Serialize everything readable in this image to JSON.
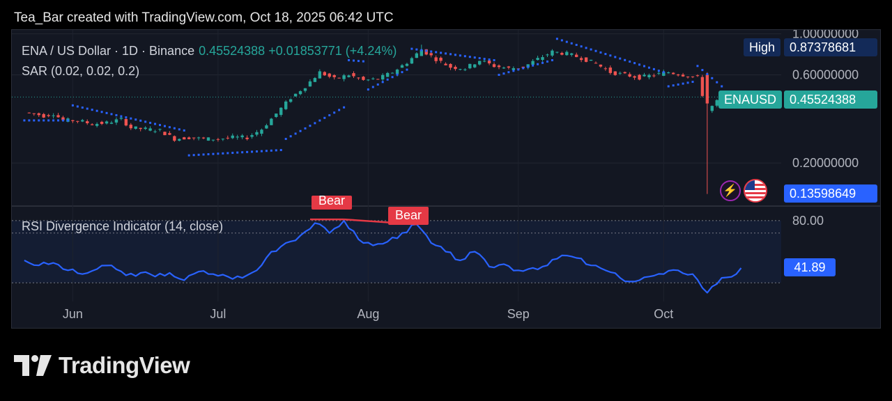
{
  "header": {
    "credit": "Tea_Bar created with TradingView.com, Oct 18, 2025 06:42 UTC"
  },
  "legend": {
    "symbol": "ENA / US Dollar · 1D · Binance",
    "quote": "0.45524388 +0.01853771 (+4.24%)",
    "sar": "SAR (0.02, 0.02, 0.2)",
    "rsi": "RSI Divergence Indicator (14, close)"
  },
  "tags": {
    "high_label": "High",
    "high_value": "0.87378681",
    "symbol_label": "ENAUSD",
    "last_value": "0.45524388",
    "low_value": "0.13598649",
    "rsi_value": "41.89"
  },
  "annotations": {
    "bear_1": "Bear",
    "bear_2": "Bear"
  },
  "logo": {
    "text": "TradingView"
  },
  "colors": {
    "up": "#26a69a",
    "down": "#ef5350",
    "sar": "#2962ff",
    "rsi": "#2962ff",
    "bear": "#e53945",
    "bg": "#131722"
  },
  "icons": [
    "bolt-icon",
    "us-flag-icon",
    "tradingview-logo-icon"
  ],
  "chart_data": [
    {
      "type": "candlestick",
      "title": "ENA / US Dollar · 1D · Binance",
      "x_ticks": [
        "Jun",
        "Jul",
        "Aug",
        "Sep",
        "Oct"
      ],
      "y_scale": "log",
      "y_ticks": [
        "1.00000000",
        "0.60000000",
        "0.20000000"
      ],
      "ylim": [
        0.12,
        1.05
      ],
      "close_path": [
        [
          "2025-05-22",
          0.375
        ],
        [
          "2025-05-24",
          0.37
        ],
        [
          "2025-05-26",
          0.36
        ],
        [
          "2025-05-28",
          0.37
        ],
        [
          "2025-05-30",
          0.34
        ],
        [
          "2025-06-02",
          0.34
        ],
        [
          "2025-06-05",
          0.325
        ],
        [
          "2025-06-08",
          0.33
        ],
        [
          "2025-06-11",
          0.345
        ],
        [
          "2025-06-13",
          0.31
        ],
        [
          "2025-06-16",
          0.305
        ],
        [
          "2025-06-19",
          0.3
        ],
        [
          "2025-06-22",
          0.27
        ],
        [
          "2025-06-25",
          0.275
        ],
        [
          "2025-06-28",
          0.27
        ],
        [
          "2025-07-01",
          0.27
        ],
        [
          "2025-07-04",
          0.275
        ],
        [
          "2025-07-07",
          0.275
        ],
        [
          "2025-07-10",
          0.305
        ],
        [
          "2025-07-13",
          0.37
        ],
        [
          "2025-07-16",
          0.45
        ],
        [
          "2025-07-19",
          0.52
        ],
        [
          "2025-07-22",
          0.62
        ],
        [
          "2025-07-25",
          0.57
        ],
        [
          "2025-07-28",
          0.6
        ],
        [
          "2025-07-31",
          0.56
        ],
        [
          "2025-08-03",
          0.57
        ],
        [
          "2025-08-06",
          0.62
        ],
        [
          "2025-08-09",
          0.7
        ],
        [
          "2025-08-12",
          0.82
        ],
        [
          "2025-08-15",
          0.73
        ],
        [
          "2025-08-18",
          0.66
        ],
        [
          "2025-08-21",
          0.65
        ],
        [
          "2025-08-24",
          0.72
        ],
        [
          "2025-08-27",
          0.67
        ],
        [
          "2025-08-30",
          0.65
        ],
        [
          "2025-09-02",
          0.66
        ],
        [
          "2025-09-05",
          0.73
        ],
        [
          "2025-09-08",
          0.8
        ],
        [
          "2025-09-11",
          0.78
        ],
        [
          "2025-09-14",
          0.74
        ],
        [
          "2025-09-17",
          0.69
        ],
        [
          "2025-09-20",
          0.62
        ],
        [
          "2025-09-23",
          0.6
        ],
        [
          "2025-09-26",
          0.58
        ],
        [
          "2025-09-29",
          0.6
        ],
        [
          "2025-10-02",
          0.62
        ],
        [
          "2025-10-05",
          0.6
        ],
        [
          "2025-10-08",
          0.58
        ],
        [
          "2025-10-10",
          0.38
        ],
        [
          "2025-10-12",
          0.43
        ],
        [
          "2025-10-14",
          0.46
        ],
        [
          "2025-10-16",
          0.44
        ],
        [
          "2025-10-17",
          0.455
        ]
      ],
      "high": 0.87378681,
      "low": 0.13598649,
      "last": 0.45524388
    },
    {
      "type": "scatter",
      "name": "SAR (0.02, 0.02, 0.2)",
      "segments": [
        [
          [
            "2025-05-22",
            0.34
          ],
          [
            "2025-05-31",
            0.34
          ]
        ],
        [
          [
            "2025-06-01",
            0.41
          ],
          [
            "2025-06-24",
            0.3
          ]
        ],
        [
          [
            "2025-06-25",
            0.22
          ],
          [
            "2025-07-14",
            0.235
          ]
        ],
        [
          [
            "2025-07-15",
            0.27
          ],
          [
            "2025-07-27",
            0.4
          ]
        ],
        [
          [
            "2025-07-28",
            0.72
          ],
          [
            "2025-07-31",
            0.71
          ]
        ],
        [
          [
            "2025-08-01",
            0.5
          ],
          [
            "2025-08-09",
            0.64
          ]
        ],
        [
          [
            "2025-08-10",
            0.83
          ],
          [
            "2025-08-27",
            0.72
          ]
        ],
        [
          [
            "2025-08-28",
            0.6
          ],
          [
            "2025-09-08",
            0.72
          ]
        ],
        [
          [
            "2025-09-09",
            0.94
          ],
          [
            "2025-10-01",
            0.62
          ]
        ],
        [
          [
            "2025-10-02",
            0.52
          ],
          [
            "2025-10-07",
            0.55
          ]
        ],
        [
          [
            "2025-10-08",
            0.67
          ],
          [
            "2025-10-13",
            0.52
          ]
        ]
      ]
    },
    {
      "type": "line",
      "name": "RSI Divergence Indicator (14, close)",
      "y_ticks": [
        "80.00"
      ],
      "levels": [
        80,
        70,
        30
      ],
      "ylim": [
        15,
        90
      ],
      "values": [
        [
          "2025-05-22",
          48
        ],
        [
          "2025-05-25",
          44
        ],
        [
          "2025-05-28",
          46
        ],
        [
          "2025-05-31",
          40
        ],
        [
          "2025-06-03",
          37
        ],
        [
          "2025-06-06",
          41
        ],
        [
          "2025-06-09",
          44
        ],
        [
          "2025-06-12",
          36
        ],
        [
          "2025-06-15",
          38
        ],
        [
          "2025-06-18",
          35
        ],
        [
          "2025-06-21",
          38
        ],
        [
          "2025-06-24",
          32
        ],
        [
          "2025-06-27",
          39
        ],
        [
          "2025-06-30",
          37
        ],
        [
          "2025-07-03",
          35
        ],
        [
          "2025-07-06",
          34
        ],
        [
          "2025-07-09",
          40
        ],
        [
          "2025-07-12",
          55
        ],
        [
          "2025-07-15",
          62
        ],
        [
          "2025-07-18",
          68
        ],
        [
          "2025-07-21",
          78
        ],
        [
          "2025-07-24",
          70
        ],
        [
          "2025-07-27",
          80
        ],
        [
          "2025-07-30",
          65
        ],
        [
          "2025-08-02",
          60
        ],
        [
          "2025-08-05",
          63
        ],
        [
          "2025-08-08",
          70
        ],
        [
          "2025-08-11",
          77
        ],
        [
          "2025-08-14",
          62
        ],
        [
          "2025-08-17",
          55
        ],
        [
          "2025-08-20",
          48
        ],
        [
          "2025-08-23",
          55
        ],
        [
          "2025-08-26",
          43
        ],
        [
          "2025-08-29",
          45
        ],
        [
          "2025-09-01",
          40
        ],
        [
          "2025-09-04",
          42
        ],
        [
          "2025-09-07",
          44
        ],
        [
          "2025-09-10",
          52
        ],
        [
          "2025-09-13",
          50
        ],
        [
          "2025-09-16",
          44
        ],
        [
          "2025-09-19",
          40
        ],
        [
          "2025-09-22",
          34
        ],
        [
          "2025-09-25",
          31
        ],
        [
          "2025-09-28",
          35
        ],
        [
          "2025-10-01",
          37
        ],
        [
          "2025-10-04",
          40
        ],
        [
          "2025-10-07",
          37
        ],
        [
          "2025-10-10",
          22
        ],
        [
          "2025-10-13",
          34
        ],
        [
          "2025-10-16",
          37
        ],
        [
          "2025-10-17",
          41.89
        ]
      ],
      "divergences": [
        {
          "label": "Bear",
          "from": [
            "2025-07-20",
            81
          ],
          "to": [
            "2025-07-27",
            81
          ]
        },
        {
          "label": "Bear",
          "from": [
            "2025-07-27",
            81
          ],
          "to": [
            "2025-08-11",
            77
          ]
        }
      ]
    }
  ]
}
